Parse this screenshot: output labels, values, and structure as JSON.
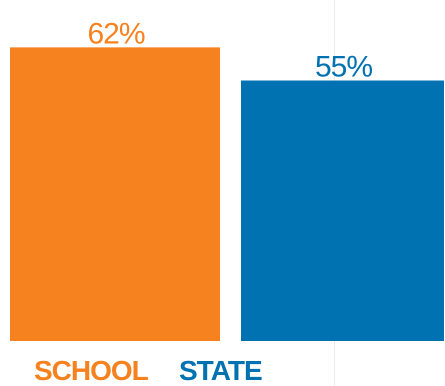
{
  "chart_data": {
    "type": "bar",
    "categories": [
      "SCHOOL",
      "STATE"
    ],
    "values": [
      62,
      55
    ],
    "value_labels": [
      "62%",
      "55%"
    ],
    "colors": [
      "#f5821f",
      "#0072b1"
    ],
    "ylim": [
      0,
      72
    ],
    "grid": false,
    "legend": "none"
  }
}
